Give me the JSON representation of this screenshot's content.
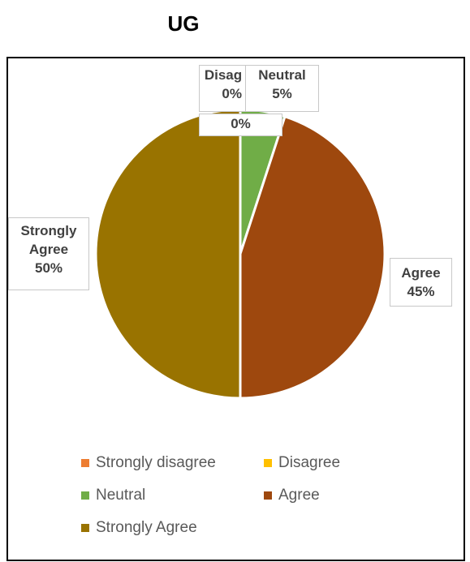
{
  "chart_data": {
    "type": "pie",
    "title": "UG",
    "categories": [
      "Strongly disagree",
      "Disagree",
      "Neutral",
      "Agree",
      "Strongly Agree"
    ],
    "values": [
      0,
      0,
      5,
      45,
      50
    ],
    "colors": [
      "#ED7D31",
      "#FFC000",
      "#70AD47",
      "#9E480E",
      "#997300"
    ],
    "data_labels": [
      {
        "line1": "0%",
        "line2": ""
      },
      {
        "line1": "Disag",
        "line2": "0%"
      },
      {
        "line1": "Neutral",
        "line2": "5%"
      },
      {
        "line1": "Agree",
        "line2": "45%"
      },
      {
        "line1": "Strongly",
        "line2": "Agree",
        "line3": "50%"
      }
    ],
    "legend_position": "bottom"
  }
}
